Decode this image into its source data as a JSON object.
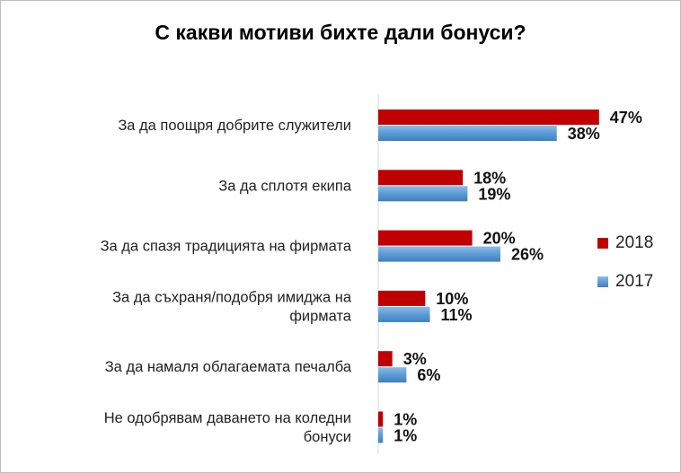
{
  "chart_data": {
    "type": "bar",
    "orientation": "horizontal",
    "title": "С какви мотиви бихте дали бонуси?",
    "categories": [
      [
        "За да поощря добрите служители"
      ],
      [
        "За да сплотя екипа"
      ],
      [
        "За да спазя традицията на фирмата"
      ],
      [
        "За да съхраня/подобря имиджа на",
        "фирмата"
      ],
      [
        "За да намаля облагаемата печалба"
      ],
      [
        "Не одобрявам даването на коледни",
        "бонуси"
      ]
    ],
    "series": [
      {
        "name": "2018",
        "color": "#c00000",
        "values": [
          47,
          18,
          20,
          10,
          3,
          1
        ]
      },
      {
        "name": "2017",
        "color": "#5b9bd5",
        "values": [
          38,
          19,
          26,
          11,
          6,
          1
        ]
      }
    ],
    "value_suffix": "%",
    "xlim": [
      0,
      100
    ],
    "grid": false,
    "legend": "right"
  }
}
